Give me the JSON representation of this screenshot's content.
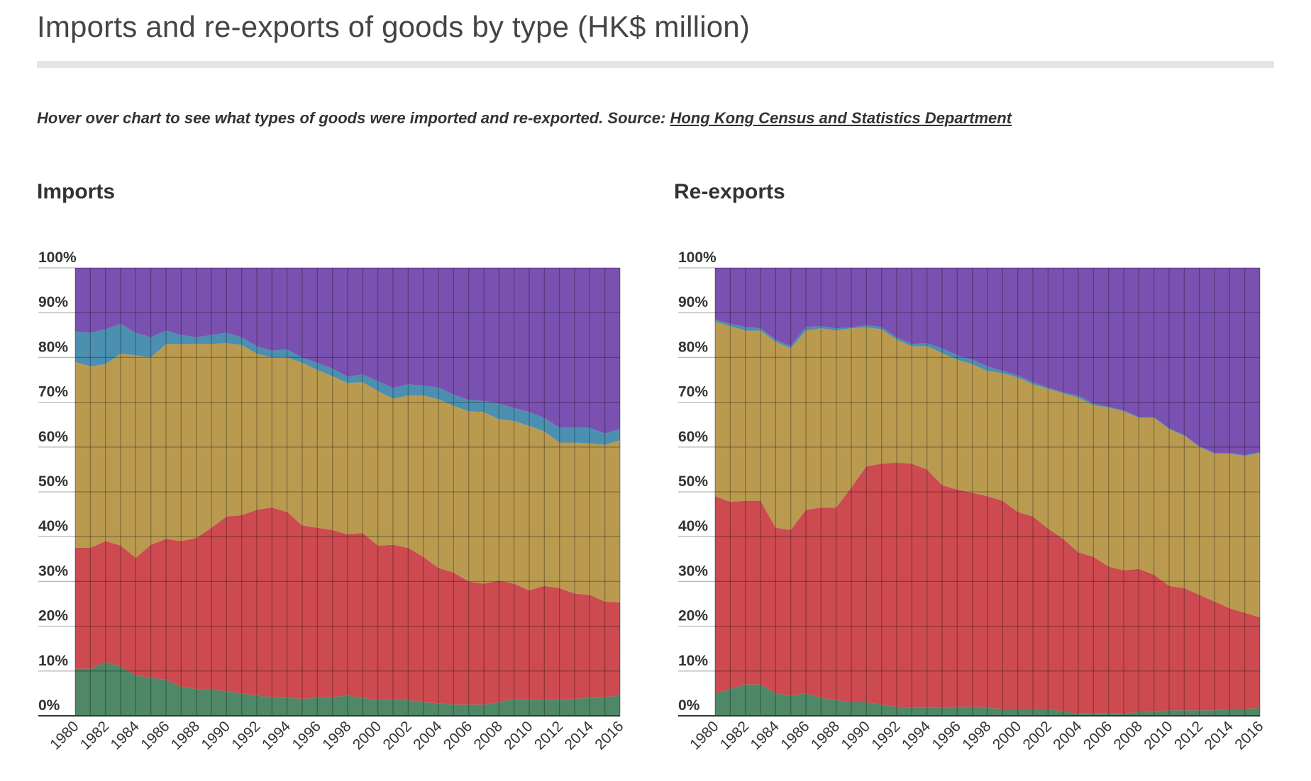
{
  "page": {
    "title": "Imports and re-exports of goods by type (HK$ million)",
    "subtitle_text": "Hover over chart to see what types of goods were imported and re-exported. Source: ",
    "source_link": "Hong Kong Census and Statistics Department"
  },
  "colors": {
    "band1": "#4e8866",
    "band2": "#cc4a50",
    "band3": "#b99a4f",
    "band4": "#4b8fb1",
    "band5": "#7a51b0"
  },
  "chart_data": [
    {
      "type": "area",
      "title": "Imports",
      "stacked": "percent",
      "ylim": [
        0,
        100
      ],
      "y_ticks": [
        "0%",
        "10%",
        "20%",
        "30%",
        "40%",
        "50%",
        "60%",
        "70%",
        "80%",
        "90%",
        "100%"
      ],
      "x_tick_labels": [
        "1980",
        "1982",
        "1984",
        "1986",
        "1988",
        "1990",
        "1992",
        "1994",
        "1996",
        "1998",
        "2000",
        "2002",
        "2004",
        "2006",
        "2008",
        "2010",
        "2012",
        "2014",
        "2016"
      ],
      "grid": "vertical and horizontal",
      "x": [
        1980,
        1981,
        1982,
        1983,
        1984,
        1985,
        1986,
        1987,
        1988,
        1989,
        1990,
        1991,
        1992,
        1993,
        1994,
        1995,
        1996,
        1997,
        1998,
        1999,
        2000,
        2001,
        2002,
        2003,
        2004,
        2005,
        2006,
        2007,
        2008,
        2009,
        2010,
        2011,
        2012,
        2013,
        2014,
        2015,
        2016
      ],
      "cumulative": [
        [
          10.5,
          10.5,
          12,
          11,
          9,
          8.5,
          8,
          6.5,
          6,
          5.8,
          5.5,
          5,
          4.5,
          4.2,
          4,
          3.8,
          4,
          4.2,
          4.5,
          4,
          3.5,
          3.5,
          3.5,
          3,
          2.8,
          2.5,
          2.5,
          2.5,
          3,
          3.8,
          3.5,
          3.5,
          3.5,
          3.8,
          4,
          4.2,
          4.5
        ],
        [
          37.5,
          37.5,
          39,
          38,
          35.3,
          38.2,
          39.5,
          39,
          39.7,
          42,
          44.5,
          44.8,
          46,
          46.5,
          45.5,
          42.5,
          42,
          41.5,
          40.5,
          40.8,
          38,
          38.2,
          37.5,
          35.5,
          33,
          32,
          30,
          29.5,
          30.2,
          29.5,
          28,
          29,
          28.5,
          27.3,
          27,
          25.5,
          25.3
        ],
        [
          79,
          78,
          78.5,
          80.8,
          80.5,
          80,
          83,
          83,
          83,
          83,
          83.2,
          82.8,
          80.8,
          80,
          80,
          78.8,
          77.2,
          75.8,
          74.3,
          74.5,
          72.5,
          70.8,
          71.5,
          71.5,
          70.7,
          69.2,
          68,
          67.8,
          66.2,
          65.8,
          64.7,
          63.5,
          61,
          61,
          60.8,
          60.5,
          61.5
        ],
        [
          85.8,
          85.5,
          86.3,
          87.5,
          85.5,
          84.5,
          86,
          85,
          84.5,
          85,
          85.5,
          84.5,
          82.5,
          81.5,
          81.8,
          80,
          78.8,
          77.5,
          75.7,
          76.2,
          74.7,
          73.2,
          74,
          73.7,
          73.3,
          71.7,
          70.5,
          70.3,
          69.7,
          68.7,
          67.8,
          66.5,
          64.3,
          64.3,
          64.3,
          63,
          64
        ]
      ]
    },
    {
      "type": "area",
      "title": "Re-exports",
      "stacked": "percent",
      "ylim": [
        0,
        100
      ],
      "y_ticks": [
        "0%",
        "10%",
        "20%",
        "30%",
        "40%",
        "50%",
        "60%",
        "70%",
        "80%",
        "90%",
        "100%"
      ],
      "x_tick_labels": [
        "1980",
        "1982",
        "1984",
        "1986",
        "1988",
        "1990",
        "1992",
        "1994",
        "1996",
        "1998",
        "2000",
        "2002",
        "2004",
        "2006",
        "2008",
        "2010",
        "2012",
        "2014",
        "2016"
      ],
      "grid": "vertical and horizontal",
      "x": [
        1980,
        1981,
        1982,
        1983,
        1984,
        1985,
        1986,
        1987,
        1988,
        1989,
        1990,
        1991,
        1992,
        1993,
        1994,
        1995,
        1996,
        1997,
        1998,
        1999,
        2000,
        2001,
        2002,
        2003,
        2004,
        2005,
        2006,
        2007,
        2008,
        2009,
        2010,
        2011,
        2012,
        2013,
        2014,
        2015,
        2016
      ],
      "cumulative": [
        [
          5,
          6,
          7,
          7,
          5,
          4.5,
          5,
          4,
          3.5,
          3,
          3,
          2.5,
          2,
          1.8,
          1.8,
          1.8,
          2,
          2,
          1.8,
          1.5,
          1.5,
          1.5,
          1.5,
          1,
          0.5,
          0.5,
          0.5,
          0.5,
          0.8,
          1,
          1.2,
          1.2,
          1.2,
          1.2,
          1.5,
          1.5,
          1.8
        ],
        [
          49,
          47.8,
          48,
          48,
          42,
          41.5,
          46,
          46.5,
          46.5,
          51,
          55.7,
          56.3,
          56.5,
          56.3,
          55,
          51.5,
          50.5,
          49.8,
          49,
          48,
          45.5,
          44.5,
          41.8,
          39.5,
          36.5,
          35.5,
          33.3,
          32.5,
          32.8,
          31.5,
          29,
          28.5,
          27,
          25.5,
          24,
          23,
          22
        ],
        [
          88,
          87,
          86,
          86,
          83.5,
          82,
          86,
          86.5,
          86,
          86.5,
          86.7,
          86.3,
          84,
          82.5,
          82.5,
          81,
          79.5,
          78.5,
          77,
          76.5,
          75.5,
          74,
          73,
          72,
          71,
          69.3,
          68.8,
          68,
          66.5,
          66.5,
          64,
          62.5,
          60,
          58.5,
          58.5,
          58,
          58.7
        ],
        [
          88.5,
          87.5,
          86.8,
          86.5,
          84,
          82.5,
          86.8,
          87,
          86.5,
          86.7,
          87.2,
          86.8,
          84.5,
          83,
          83.2,
          82,
          80.5,
          79.5,
          78,
          77,
          76,
          74.5,
          73.3,
          72.2,
          71.5,
          69.7,
          69,
          68.2,
          66.7,
          66.7,
          64.2,
          62.7,
          60.2,
          58.7,
          58.7,
          58.2,
          58.9
        ]
      ]
    }
  ]
}
